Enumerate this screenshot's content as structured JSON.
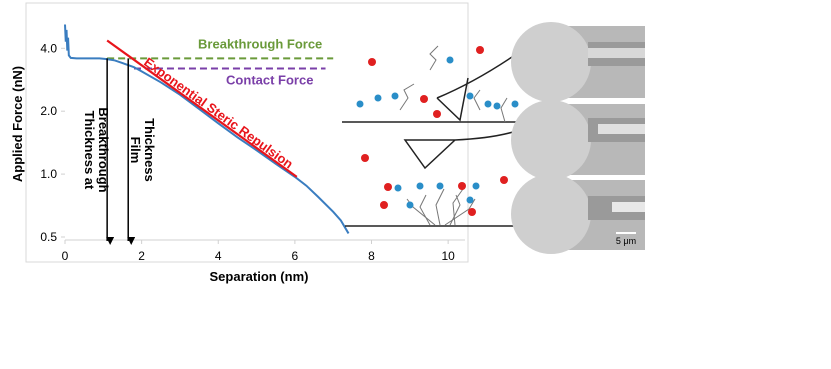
{
  "chart_data": {
    "type": "line",
    "x_label": "Separation (nm)",
    "y_label": "Applied Force (nN)",
    "xlim": [
      0,
      10.44
    ],
    "xticks": [
      0,
      2,
      4,
      6,
      8,
      10
    ],
    "ylim": [
      0.5,
      6
    ],
    "ylog": true,
    "yticks": [
      0.5,
      {
        "value": 1,
        "label": "1.0"
      },
      {
        "value": 2,
        "label": "2.0"
      },
      {
        "value": 4,
        "label": "4.0"
      }
    ],
    "series": [
      {
        "color": "#3a7dc0",
        "x": [
          0,
          0.02,
          0.04,
          0.06,
          0.08,
          0.1,
          0.15,
          0.3,
          0.6,
          0.9,
          1.1,
          1.3,
          1.5,
          1.8,
          2,
          2.5,
          3,
          3.5,
          4,
          4.5,
          5,
          5.5,
          6,
          6.3,
          6.6,
          7,
          7.2,
          7.4
        ],
        "values": [
          5.2,
          4.3,
          4.9,
          3.9,
          4.5,
          3.7,
          3.6,
          3.58,
          3.58,
          3.58,
          3.55,
          3.5,
          3.4,
          3.25,
          3.1,
          2.75,
          2.4,
          2.05,
          1.75,
          1.5,
          1.3,
          1.12,
          0.97,
          0.88,
          0.78,
          0.66,
          0.6,
          0.52
        ]
      },
      {
        "name": "Exponential Steric Repulsion",
        "color": "#e8141b",
        "x": [
          1.1,
          6.05
        ],
        "values": [
          4.36,
          0.97
        ]
      }
    ],
    "reference_lines": [
      {
        "name": "Breakthrough Force",
        "color": "#6a9a3a",
        "value": 3.58,
        "x": [
          1.1,
          7
        ]
      },
      {
        "name": "Contact Force",
        "color": "#7a3fa8",
        "value": 3.2,
        "x": [
          1.8,
          6.8
        ]
      }
    ],
    "markers": [
      {
        "lines": [
          "Thickness at",
          "Breakthrough"
        ],
        "value": 1.1
      },
      {
        "lines": [
          "Film",
          "Thickness"
        ],
        "value": 1.65
      }
    ],
    "micrograph_scale": "5 μm"
  }
}
